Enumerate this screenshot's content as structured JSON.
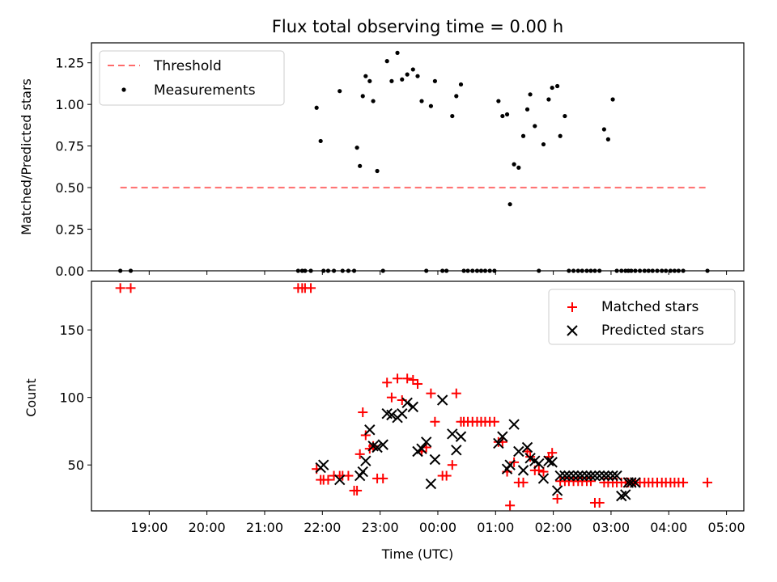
{
  "chart_data": [
    {
      "type": "scatter",
      "title": "Flux total observing time = 0.00 h",
      "xlabel": "",
      "ylabel": "Matched/Predicted stars",
      "ylim": [
        0,
        1.37
      ],
      "xlim_hours": [
        18.0,
        29.3
      ],
      "y_ticks": [
        "0.00",
        "0.25",
        "0.50",
        "0.75",
        "1.00",
        "1.25"
      ],
      "legend_position": "upper-left",
      "threshold": {
        "name": "Threshold",
        "value": 0.5,
        "x_start": 18.5,
        "x_end": 28.67,
        "color": "#ff6b6b"
      },
      "series": [
        {
          "name": "Measurements",
          "color": "#000000",
          "x": [
            18.5,
            18.68,
            21.58,
            21.65,
            21.7,
            21.8,
            21.9,
            21.97,
            22.02,
            22.1,
            22.2,
            22.3,
            22.35,
            22.45,
            22.55,
            22.6,
            22.65,
            22.7,
            22.75,
            22.82,
            22.88,
            22.95,
            23.05,
            23.12,
            23.2,
            23.3,
            23.38,
            23.47,
            23.57,
            23.65,
            23.72,
            23.8,
            23.88,
            23.95,
            24.08,
            24.15,
            24.25,
            24.32,
            24.4,
            24.45,
            24.52,
            24.6,
            24.68,
            24.75,
            24.82,
            24.9,
            24.98,
            25.05,
            25.12,
            25.2,
            25.25,
            25.32,
            25.4,
            25.48,
            25.55,
            25.6,
            25.68,
            25.75,
            25.83,
            25.92,
            25.98,
            26.07,
            26.12,
            26.2,
            26.27,
            26.35,
            26.43,
            26.5,
            26.58,
            26.65,
            26.72,
            26.8,
            26.88,
            26.95,
            27.03,
            27.1,
            27.18,
            27.25,
            27.3,
            27.35,
            27.42,
            27.5,
            27.58,
            27.65,
            27.72,
            27.8,
            27.88,
            27.95,
            28.03,
            28.1,
            28.17,
            28.25,
            28.67
          ],
          "y": [
            0,
            0,
            0,
            0,
            0,
            0,
            0.98,
            0.78,
            0,
            0,
            0,
            1.08,
            0,
            0,
            0,
            0.74,
            0.63,
            1.05,
            1.17,
            1.14,
            1.02,
            0.6,
            0,
            1.26,
            1.14,
            1.31,
            1.15,
            1.18,
            1.21,
            1.17,
            1.02,
            0,
            0.99,
            1.14,
            0,
            0,
            0.93,
            1.05,
            1.12,
            0,
            0,
            0,
            0,
            0,
            0,
            0,
            0,
            1.02,
            0.93,
            0.94,
            0.4,
            0.64,
            0.62,
            0.81,
            0.97,
            1.06,
            0.87,
            0,
            0.76,
            1.03,
            1.1,
            1.11,
            0.81,
            0.93,
            0,
            0,
            0,
            0,
            0,
            0,
            0,
            0,
            0.85,
            0.79,
            1.03,
            0,
            0,
            0,
            0,
            0,
            0,
            0,
            0,
            0,
            0,
            0,
            0,
            0,
            0,
            0,
            0,
            0,
            0
          ]
        }
      ]
    },
    {
      "type": "scatter",
      "title": "",
      "xlabel": "Time (UTC)",
      "ylabel": "Count",
      "ylim": [
        16,
        186
      ],
      "xlim_hours": [
        18.0,
        29.3
      ],
      "y_ticks": [
        "50",
        "100",
        "150"
      ],
      "x_tick_hours": [
        19,
        20,
        21,
        22,
        23,
        24,
        25,
        26,
        27,
        28,
        29
      ],
      "x_tick_labels": [
        "19:00",
        "20:00",
        "21:00",
        "22:00",
        "23:00",
        "00:00",
        "01:00",
        "02:00",
        "03:00",
        "04:00",
        "05:00"
      ],
      "legend_position": "upper-right",
      "series": [
        {
          "name": "Matched stars",
          "color": "#ff0000",
          "marker": "+",
          "x": [
            18.5,
            18.68,
            21.58,
            21.65,
            21.7,
            21.8,
            21.9,
            21.97,
            22.02,
            22.1,
            22.2,
            22.3,
            22.35,
            22.45,
            22.55,
            22.6,
            22.65,
            22.7,
            22.75,
            22.82,
            22.88,
            22.95,
            23.05,
            23.12,
            23.2,
            23.3,
            23.38,
            23.47,
            23.57,
            23.65,
            23.72,
            23.8,
            23.88,
            23.95,
            24.08,
            24.15,
            24.25,
            24.32,
            24.4,
            24.45,
            24.52,
            24.6,
            24.68,
            24.75,
            24.82,
            24.9,
            24.98,
            25.05,
            25.12,
            25.2,
            25.25,
            25.32,
            25.4,
            25.48,
            25.55,
            25.6,
            25.68,
            25.75,
            25.83,
            25.92,
            25.98,
            26.07,
            26.12,
            26.2,
            26.27,
            26.35,
            26.43,
            26.5,
            26.58,
            26.65,
            26.72,
            26.8,
            26.88,
            26.95,
            27.03,
            27.1,
            27.18,
            27.25,
            27.3,
            27.35,
            27.42,
            27.5,
            27.58,
            27.65,
            27.72,
            27.8,
            27.88,
            27.95,
            28.03,
            28.1,
            28.17,
            28.25,
            28.67
          ],
          "y": [
            181,
            181,
            181,
            181,
            181,
            181,
            47,
            39,
            39,
            39,
            42,
            42,
            42,
            42,
            31,
            31,
            58,
            89,
            72,
            62,
            64,
            40,
            40,
            111,
            100,
            114,
            98,
            114,
            113,
            110,
            60,
            63,
            103,
            82,
            42,
            42,
            50,
            103,
            82,
            82,
            82,
            82,
            82,
            82,
            82,
            82,
            82,
            67,
            67,
            45,
            20,
            52,
            37,
            37,
            60,
            56,
            46,
            46,
            45,
            56,
            59,
            25,
            38,
            38,
            38,
            38,
            38,
            38,
            38,
            38,
            22,
            22,
            37,
            37,
            37,
            37,
            37,
            37,
            37,
            37,
            37,
            37,
            37,
            37,
            37,
            37,
            37,
            37,
            37,
            37,
            37,
            37,
            37
          ]
        },
        {
          "name": "Predicted stars",
          "color": "#000000",
          "marker": "x",
          "x": [
            21.97,
            22.02,
            22.3,
            22.65,
            22.7,
            22.75,
            22.82,
            22.88,
            22.95,
            23.05,
            23.12,
            23.2,
            23.3,
            23.38,
            23.47,
            23.57,
            23.65,
            23.72,
            23.8,
            23.88,
            23.95,
            24.08,
            24.25,
            24.32,
            24.4,
            25.05,
            25.12,
            25.2,
            25.25,
            25.32,
            25.4,
            25.48,
            25.55,
            25.6,
            25.68,
            25.75,
            25.83,
            25.92,
            25.98,
            26.07,
            26.12,
            26.2,
            26.27,
            26.35,
            26.43,
            26.5,
            26.58,
            26.65,
            26.72,
            26.8,
            26.88,
            26.95,
            27.03,
            27.1,
            27.18,
            27.25,
            27.3,
            27.35,
            27.42
          ],
          "y": [
            48,
            50,
            39,
            42,
            45,
            53,
            76,
            64,
            63,
            65,
            88,
            87,
            85,
            88,
            96,
            93,
            60,
            62,
            67,
            36,
            54,
            98,
            73,
            61,
            71,
            66,
            71,
            47,
            50,
            80,
            60,
            46,
            63,
            55,
            53,
            51,
            40,
            53,
            52,
            31,
            42,
            42,
            42,
            42,
            42,
            42,
            42,
            42,
            42,
            42,
            42,
            42,
            42,
            42,
            27,
            28,
            37,
            37,
            37
          ]
        }
      ]
    }
  ]
}
